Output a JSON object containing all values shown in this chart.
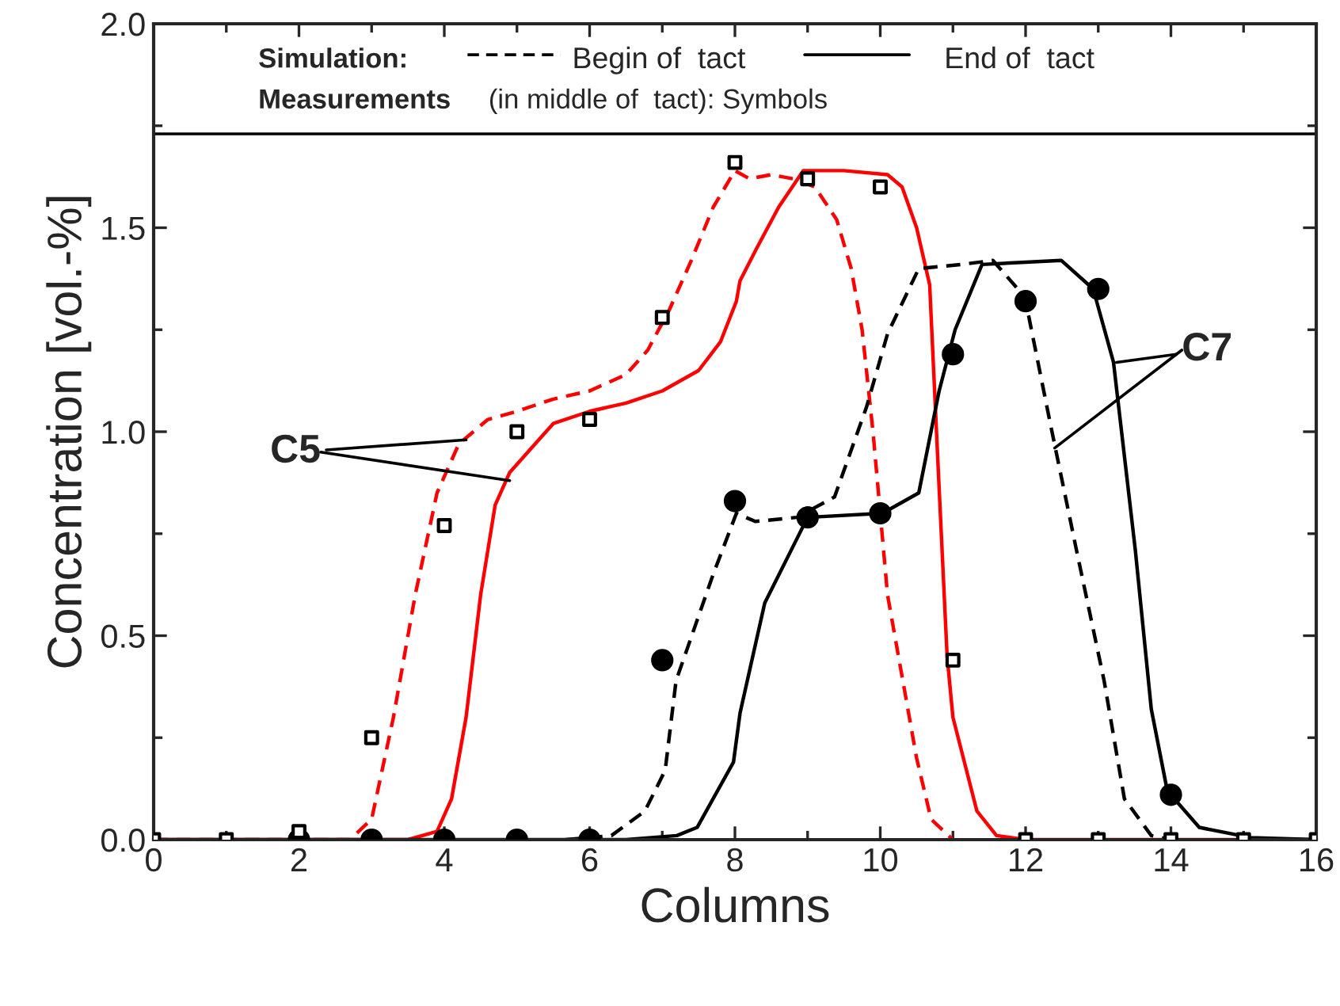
{
  "chart_data": {
    "type": "line",
    "xlabel": "Columns",
    "ylabel": "Concentration [vol.-%]",
    "xlim": [
      0,
      16
    ],
    "xticks": [
      0,
      2,
      4,
      6,
      8,
      10,
      12,
      14,
      16
    ],
    "ylim": [
      0,
      2.0
    ],
    "yticks": [
      {
        "value": 0,
        "label": "0.0"
      },
      0.5,
      {
        "value": 1.0,
        "label": "1.0"
      },
      1.5,
      {
        "value": 2.0,
        "label": "2.0"
      }
    ],
    "grid": false,
    "legend": false,
    "series": [
      {
        "color": "#ff0000",
        "line_style": "dashed",
        "marker": "none",
        "x": [
          0,
          2.7,
          3.0,
          3.3,
          3.6,
          3.9,
          4.2,
          4.6,
          5.0,
          5.5,
          6.0,
          6.5,
          6.8,
          7.1,
          7.4,
          7.7,
          8.0,
          8.2,
          8.5,
          8.8,
          9.1,
          9.4,
          9.6,
          9.75,
          9.9,
          10.0,
          10.1,
          10.3,
          10.5,
          10.7,
          11.0
        ],
        "values": [
          0,
          0,
          0.05,
          0.3,
          0.6,
          0.85,
          0.97,
          1.03,
          1.05,
          1.08,
          1.1,
          1.14,
          1.2,
          1.3,
          1.42,
          1.55,
          1.64,
          1.62,
          1.63,
          1.62,
          1.6,
          1.52,
          1.4,
          1.25,
          1.0,
          0.8,
          0.6,
          0.4,
          0.2,
          0.05,
          0
        ]
      },
      {
        "color": "#ff0000",
        "line_style": "solid",
        "marker": "none",
        "x": [
          0,
          3.5,
          3.9,
          4.1,
          4.3,
          4.5,
          4.7,
          4.9,
          5.3,
          5.5,
          6.0,
          6.5,
          7.0,
          7.5,
          7.8,
          8.02,
          8.07,
          8.3,
          8.6,
          8.94,
          9.5,
          10.1,
          10.3,
          10.5,
          10.68,
          10.8,
          10.92,
          11.0,
          11.33,
          11.6,
          12.0,
          16.0
        ],
        "values": [
          0,
          0,
          0.02,
          0.1,
          0.3,
          0.6,
          0.82,
          0.9,
          0.98,
          1.02,
          1.05,
          1.07,
          1.1,
          1.15,
          1.22,
          1.32,
          1.37,
          1.45,
          1.55,
          1.64,
          1.64,
          1.63,
          1.6,
          1.5,
          1.36,
          0.9,
          0.45,
          0.3,
          0.07,
          0.01,
          0,
          0
        ]
      },
      {
        "color": "#000000",
        "line_style": "dashed",
        "marker": "none",
        "x": [
          5.67,
          6.3,
          6.76,
          7.04,
          7.19,
          7.7,
          8.02,
          8.28,
          8.85,
          9.37,
          9.81,
          10.1,
          10.53,
          11.12,
          11.55,
          11.99,
          12.34,
          12.7,
          13.08,
          13.36,
          13.73,
          14.0
        ],
        "values": [
          0,
          0.01,
          0.07,
          0.17,
          0.39,
          0.65,
          0.8,
          0.78,
          0.79,
          0.84,
          1.06,
          1.24,
          1.4,
          1.41,
          1.42,
          1.33,
          1.02,
          0.71,
          0.39,
          0.1,
          0.01,
          0
        ]
      },
      {
        "color": "#000000",
        "line_style": "solid",
        "marker": "none",
        "x": [
          0,
          6.5,
          7.2,
          7.48,
          7.98,
          8.07,
          8.41,
          9.0,
          10.03,
          10.53,
          10.81,
          11.03,
          11.4,
          12.49,
          12.93,
          13.21,
          13.51,
          13.73,
          13.95,
          14.39,
          15.1,
          16.0
        ],
        "values": [
          0,
          0,
          0.01,
          0.03,
          0.19,
          0.31,
          0.58,
          0.79,
          0.8,
          0.85,
          1.1,
          1.25,
          1.41,
          1.42,
          1.35,
          1.17,
          0.71,
          0.32,
          0.12,
          0.03,
          0.005,
          0
        ]
      },
      {
        "type": "scatter",
        "color": "#000000",
        "marker": "square",
        "x": [
          0,
          1,
          2,
          3,
          4,
          5,
          6,
          7,
          8,
          9,
          10,
          11,
          12,
          13,
          14,
          15,
          16
        ],
        "values": [
          0,
          0,
          0.02,
          0.25,
          0.77,
          1.0,
          1.03,
          1.28,
          1.66,
          1.62,
          1.6,
          0.44,
          0,
          0,
          0,
          0,
          0
        ]
      },
      {
        "type": "scatter",
        "color": "#000000",
        "marker": "circle",
        "x": [
          2,
          3,
          4,
          5,
          6,
          7,
          8,
          9,
          10,
          11,
          12,
          13,
          14
        ],
        "values": [
          0,
          0,
          0,
          0,
          0,
          0.44,
          0.83,
          0.79,
          0.8,
          1.19,
          1.32,
          1.35,
          0.11
        ]
      }
    ],
    "ref_lines": [
      {
        "axis": "y",
        "value": 1.73,
        "color": "#000000",
        "line_style": "solid"
      }
    ],
    "annotations": [
      "Simulation:",
      "Begin of  tact",
      "End of  tact",
      "Measurements",
      "(in middle of  tact): Symbols",
      {
        "text": "C5",
        "x": 4.3,
        "y": 0.98
      },
      {
        "text": "C7",
        "x": 13.25,
        "y": 1.17
      }
    ]
  }
}
